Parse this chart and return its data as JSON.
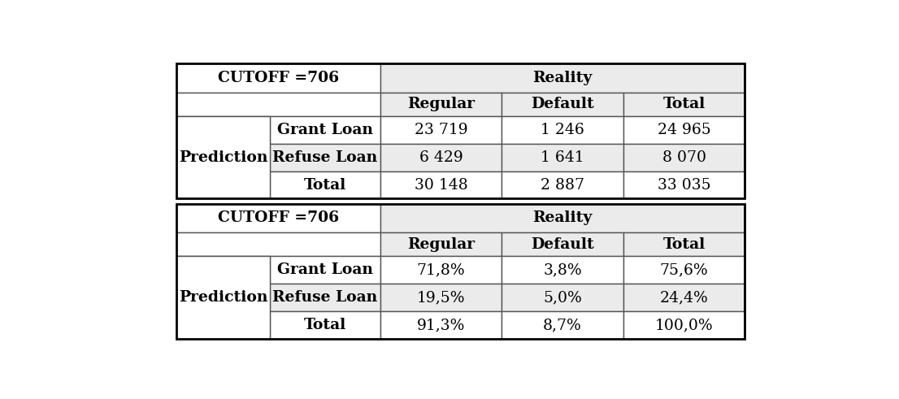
{
  "table1": {
    "cutoff_label": "CUTOFF =706",
    "reality_label": "Reality",
    "col_headers": [
      "Regular",
      "Default",
      "Total"
    ],
    "row_headers": [
      "Grant Loan",
      "Refuse Loan",
      "Total"
    ],
    "prediction_label": "Prediction",
    "data": [
      [
        "23 719",
        "1 246",
        "24 965"
      ],
      [
        "6 429",
        "1 641",
        "8 070"
      ],
      [
        "30 148",
        "2 887",
        "33 035"
      ]
    ]
  },
  "table2": {
    "cutoff_label": "CUTOFF =706",
    "reality_label": "Reality",
    "col_headers": [
      "Regular",
      "Default",
      "Total"
    ],
    "row_headers": [
      "Grant Loan",
      "Refuse Loan",
      "Total"
    ],
    "prediction_label": "Prediction",
    "data": [
      [
        "71,8%",
        "3,8%",
        "75,6%"
      ],
      [
        "19,5%",
        "5,0%",
        "24,4%"
      ],
      [
        "91,3%",
        "8,7%",
        "100,0%"
      ]
    ]
  },
  "gray_light": "#ebebeb",
  "gray_dark": "#d0d0d0",
  "white": "#ffffff",
  "font_size": 13.5
}
